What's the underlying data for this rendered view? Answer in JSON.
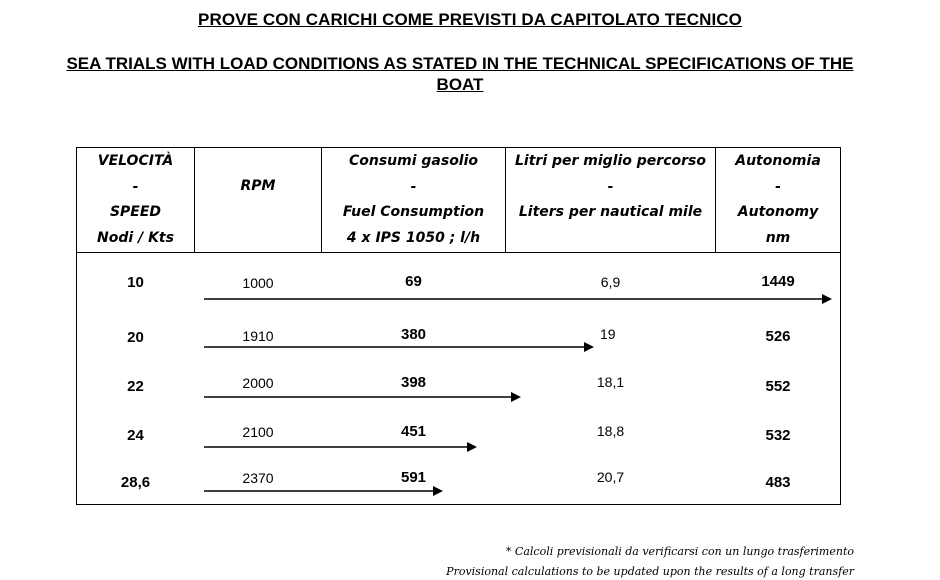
{
  "title_it": "PROVE CON CARICHI COME PREVISTI DA CAPITOLATO TECNICO",
  "title_en": "SEA TRIALS WITH LOAD CONDITIONS AS STATED IN THE TECHNICAL SPECIFICATIONS OF THE BOAT",
  "headers": {
    "speed": [
      "VELOCITÀ",
      "-",
      "SPEED",
      "Nodi / Kts"
    ],
    "rpm": [
      "RPM"
    ],
    "fuel": [
      "Consumi gasolio",
      "-",
      "Fuel Consumption",
      "4 x IPS 1050 ;  l/h"
    ],
    "liters": [
      "Litri per miglio percorso",
      "-",
      "Liters per nautical mile"
    ],
    "autonomy": [
      "Autonomia",
      "-",
      "Autonomy",
      "nm"
    ]
  },
  "rows": [
    {
      "speed": "10",
      "rpm": "1000",
      "fuel": "69",
      "liters": "6,9",
      "autonomy": "1449"
    },
    {
      "speed": "20",
      "rpm": "1910",
      "fuel": "380",
      "liters": "19",
      "autonomy": "526"
    },
    {
      "speed": "22",
      "rpm": "2000",
      "fuel": "398",
      "liters": "18,1",
      "autonomy": "552"
    },
    {
      "speed": "24",
      "rpm": "2100",
      "fuel": "451",
      "liters": "18,8",
      "autonomy": "532"
    },
    {
      "speed": "28,6",
      "rpm": "2370",
      "fuel": "591",
      "liters": "20,7",
      "autonomy": "483"
    }
  ],
  "notes": {
    "it": "* Calcoli previsionali da verificarsi con un lungo trasferimento",
    "en": "Provisional calculations to be updated upon the results of a  long transfer"
  }
}
